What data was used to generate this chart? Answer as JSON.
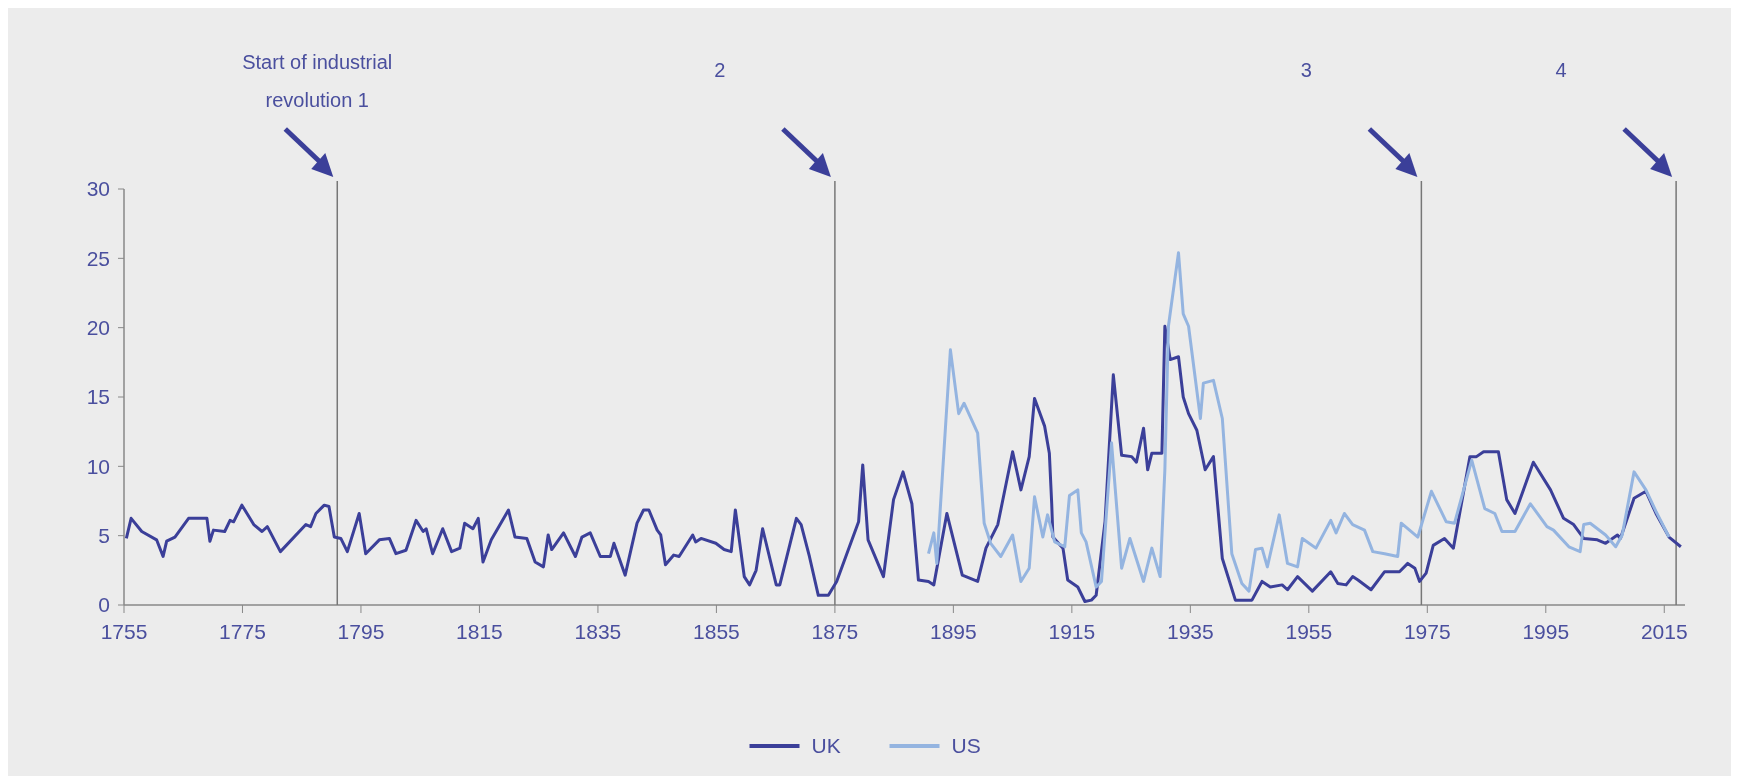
{
  "chart_data": {
    "type": "line",
    "xlim": [
      1755,
      2018.5
    ],
    "xticks": [
      1755,
      1775,
      1795,
      1815,
      1835,
      1855,
      1875,
      1895,
      1915,
      1935,
      1955,
      1975,
      1995,
      2015
    ],
    "ylim": [
      0,
      30
    ],
    "yticks": [
      0,
      5,
      10,
      15,
      20,
      25,
      30
    ],
    "grid": false,
    "legend": "bottom",
    "line_style": "solid",
    "marker": "none",
    "ref_lines": [
      {
        "axis": "x",
        "value": 1791
      },
      {
        "axis": "x",
        "value": 1875
      },
      {
        "axis": "x",
        "value": 1974
      },
      {
        "axis": "x",
        "value": 2017
      }
    ],
    "annotations": [
      "Start of industrial revolution 1",
      "2",
      "3",
      "4"
    ],
    "series": [
      {
        "name": "UK",
        "color": "#3b3f99",
        "x": [
          1755.4,
          1756.2,
          1758,
          1760.5,
          1761.6,
          1762.2,
          1763.6,
          1765.9,
          1769,
          1769.5,
          1770.1,
          1772,
          1772.9,
          1773.5,
          1774.9,
          1776.9,
          1778.3,
          1779.2,
          1781.4,
          1785.7,
          1786.5,
          1787.4,
          1788.8,
          1789.6,
          1790.5,
          1791.6,
          1792.7,
          1794.7,
          1795.8,
          1798.1,
          1799.8,
          1800.9,
          1802.6,
          1804.3,
          1805.5,
          1806,
          1807.1,
          1808.8,
          1810.3,
          1811.7,
          1812.5,
          1813.9,
          1814.8,
          1815.6,
          1817,
          1819.9,
          1821,
          1823,
          1824.4,
          1825.8,
          1826.6,
          1827.2,
          1829.2,
          1831.2,
          1832.3,
          1833.7,
          1835.4,
          1837.1,
          1837.7,
          1839.6,
          1841.6,
          1842.7,
          1843.6,
          1845,
          1845.6,
          1846.4,
          1847.8,
          1848.7,
          1851,
          1851.5,
          1852.4,
          1854.9,
          1856.3,
          1857.5,
          1858.2,
          1859.7,
          1860.6,
          1861.7,
          1862.8,
          1865.1,
          1865.7,
          1868.5,
          1869.3,
          1870.7,
          1872.2,
          1873.9,
          1875.3,
          1879,
          1879.7,
          1880.6,
          1883.2,
          1884.9,
          1886.5,
          1888,
          1889.1,
          1890.8,
          1891.7,
          1893.9,
          1896.5,
          1899.1,
          1900.5,
          1902.5,
          1905,
          1906.4,
          1907.8,
          1908.7,
          1910.4,
          1911.2,
          1911.6,
          1911.8,
          1913.5,
          1914.3,
          1916,
          1917.2,
          1918.3,
          1919.1,
          1920.6,
          1922,
          1923.4,
          1925.1,
          1925.9,
          1927.1,
          1927.8,
          1928.5,
          1930.2,
          1930.7,
          1931.6,
          1933,
          1933.8,
          1934.7,
          1936.1,
          1937.5,
          1938.9,
          1940.4,
          1942.6,
          1945.4,
          1947.1,
          1948.5,
          1950.5,
          1951.4,
          1953.1,
          1955.6,
          1958.7,
          1959.9,
          1961.3,
          1962.4,
          1963.3,
          1965.5,
          1967.8,
          1970.3,
          1971.7,
          1972.9,
          1973.7,
          1974.8,
          1976,
          1977.9,
          1979.4,
          1982.2,
          1983.3,
          1984.5,
          1987,
          1988.4,
          1989.8,
          1992.9,
          1995.8,
          1998,
          1999.7,
          2001.4,
          2003.7,
          2005.1,
          2007.1,
          2007.6,
          2009.9,
          2011.9,
          2013.6,
          2015.8,
          2017.8
        ],
        "values": [
          4.8,
          6.25,
          5.3,
          4.7,
          3.5,
          4.6,
          4.9,
          6.25,
          6.25,
          4.6,
          5.4,
          5.3,
          6.1,
          6.0,
          7.2,
          5.8,
          5.3,
          5.65,
          3.85,
          5.8,
          5.65,
          6.6,
          7.2,
          7.1,
          4.9,
          4.8,
          3.85,
          6.6,
          3.7,
          4.7,
          4.8,
          3.7,
          3.95,
          6.1,
          5.3,
          5.5,
          3.7,
          5.5,
          3.85,
          4.1,
          5.9,
          5.5,
          6.25,
          3.1,
          4.7,
          6.85,
          4.9,
          4.8,
          3.1,
          2.75,
          5.05,
          4.0,
          5.2,
          3.5,
          4.9,
          5.2,
          3.5,
          3.5,
          4.45,
          2.15,
          5.9,
          6.85,
          6.85,
          5.4,
          5.05,
          2.9,
          3.6,
          3.5,
          5.05,
          4.55,
          4.8,
          4.45,
          4.0,
          3.85,
          6.85,
          2.05,
          1.45,
          2.5,
          5.5,
          1.45,
          1.45,
          6.25,
          5.8,
          3.5,
          0.7,
          0.7,
          1.7,
          6.0,
          10.1,
          4.7,
          2.05,
          7.6,
          9.6,
          7.3,
          1.8,
          1.7,
          1.45,
          6.6,
          2.15,
          1.7,
          4.1,
          5.8,
          11.05,
          8.3,
          10.7,
          14.9,
          12.9,
          10.95,
          7.3,
          4.9,
          4.1,
          1.8,
          1.3,
          0.25,
          0.35,
          0.7,
          6.0,
          16.6,
          10.8,
          10.7,
          10.3,
          12.75,
          9.75,
          10.95,
          10.95,
          20.1,
          17.7,
          17.9,
          15.0,
          13.8,
          12.6,
          9.75,
          10.7,
          3.35,
          0.35,
          0.35,
          1.7,
          1.3,
          1.45,
          1.1,
          2.05,
          1.0,
          2.4,
          1.55,
          1.45,
          2.05,
          1.8,
          1.1,
          2.4,
          2.4,
          3.0,
          2.65,
          1.7,
          2.3,
          4.3,
          4.8,
          4.1,
          10.7,
          10.7,
          11.05,
          11.05,
          7.6,
          6.6,
          10.3,
          8.3,
          6.25,
          5.8,
          4.8,
          4.7,
          4.45,
          5.05,
          4.8,
          7.7,
          8.2,
          6.6,
          4.9,
          4.2
        ]
      },
      {
        "name": "US",
        "color": "#94b4e0",
        "x": [
          1890.8,
          1891.7,
          1892.2,
          1894.5,
          1895.9,
          1896.8,
          1899.1,
          1900.2,
          1901.3,
          1903,
          1905,
          1906.4,
          1907.8,
          1908.7,
          1910.1,
          1910.9,
          1912.1,
          1913.8,
          1914.6,
          1916,
          1916.6,
          1917.4,
          1919.1,
          1920,
          1921.7,
          1923.4,
          1924.8,
          1927.1,
          1928.5,
          1929.9,
          1930.7,
          1931.3,
          1933,
          1933.8,
          1934.7,
          1936.7,
          1937.2,
          1938.9,
          1940.4,
          1942,
          1943.7,
          1944.9,
          1946,
          1947.1,
          1948,
          1950,
          1951.4,
          1953.1,
          1953.9,
          1956.2,
          1958.7,
          1959.6,
          1961,
          1962.4,
          1964.4,
          1965.8,
          1967.8,
          1970,
          1970.6,
          1973.4,
          1975.7,
          1978.2,
          1979.6,
          1982.5,
          1984.7,
          1986.4,
          1987.6,
          1989.8,
          1992.4,
          1995.2,
          1996.3,
          1998.9,
          2000.8,
          2001.4,
          2002.5,
          2005.1,
          2006.8,
          2007.9,
          2009.9,
          2011.9,
          2013.6,
          2015.8
        ],
        "values": [
          3.7,
          5.2,
          3.0,
          18.4,
          13.8,
          14.55,
          12.4,
          5.9,
          4.45,
          3.5,
          5.05,
          1.7,
          2.65,
          7.8,
          4.9,
          6.5,
          4.55,
          4.2,
          7.9,
          8.3,
          5.2,
          4.55,
          1.3,
          1.7,
          11.7,
          2.65,
          4.8,
          1.7,
          4.1,
          2.05,
          9.75,
          20.1,
          25.4,
          21.0,
          20.1,
          13.45,
          16.0,
          16.2,
          13.45,
          3.7,
          1.55,
          1.0,
          4.0,
          4.1,
          2.75,
          6.5,
          3.0,
          2.75,
          4.8,
          4.1,
          6.1,
          5.2,
          6.6,
          5.8,
          5.4,
          3.85,
          3.7,
          3.5,
          5.9,
          4.9,
          8.2,
          6.0,
          5.9,
          10.45,
          6.95,
          6.6,
          5.3,
          5.3,
          7.3,
          5.65,
          5.4,
          4.2,
          3.85,
          5.8,
          5.9,
          5.05,
          4.2,
          5.05,
          9.6,
          8.3,
          6.75,
          4.9
        ]
      }
    ]
  }
}
